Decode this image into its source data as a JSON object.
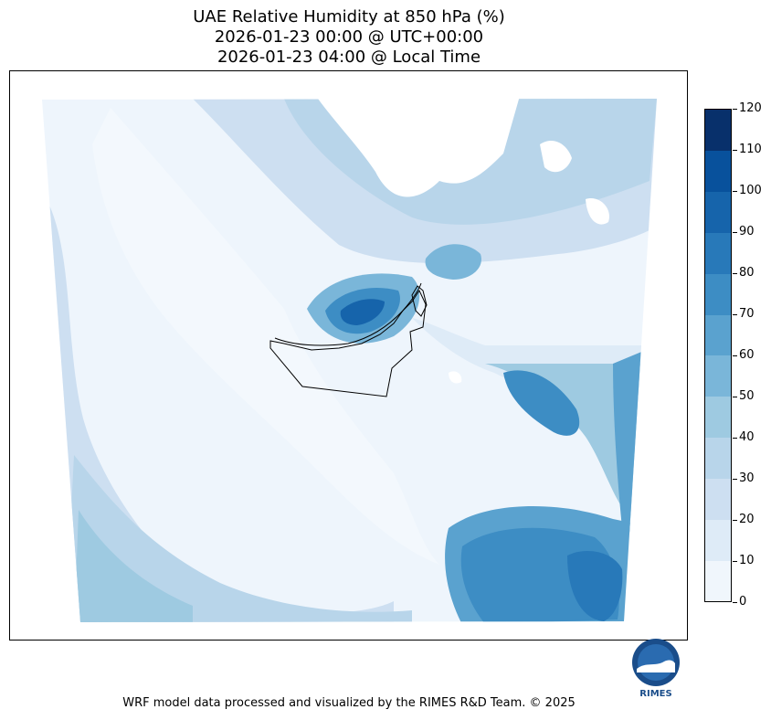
{
  "title": {
    "line1": "UAE Relative Humidity at 850 hPa (%)",
    "line2": "2026-01-23 00:00 @ UTC+00:00",
    "line3": "2026-01-23 04:00 @ Local Time"
  },
  "colorbar": {
    "ticks": [
      "0",
      "10",
      "20",
      "30",
      "40",
      "50",
      "60",
      "70",
      "80",
      "90",
      "100",
      "110",
      "120"
    ],
    "colors": [
      "#f0f6fc",
      "#deebf7",
      "#cddff1",
      "#b8d5ea",
      "#9ecae1",
      "#7ab6d9",
      "#5aa2cf",
      "#3d8dc4",
      "#2879b9",
      "#1664ab",
      "#08519c",
      "#08306b"
    ]
  },
  "footer": "WRF model data processed and visualized by the RIMES R&D Team. © 2025",
  "logo": {
    "text": "RIMES",
    "icon": "rimes-logo-icon"
  }
}
